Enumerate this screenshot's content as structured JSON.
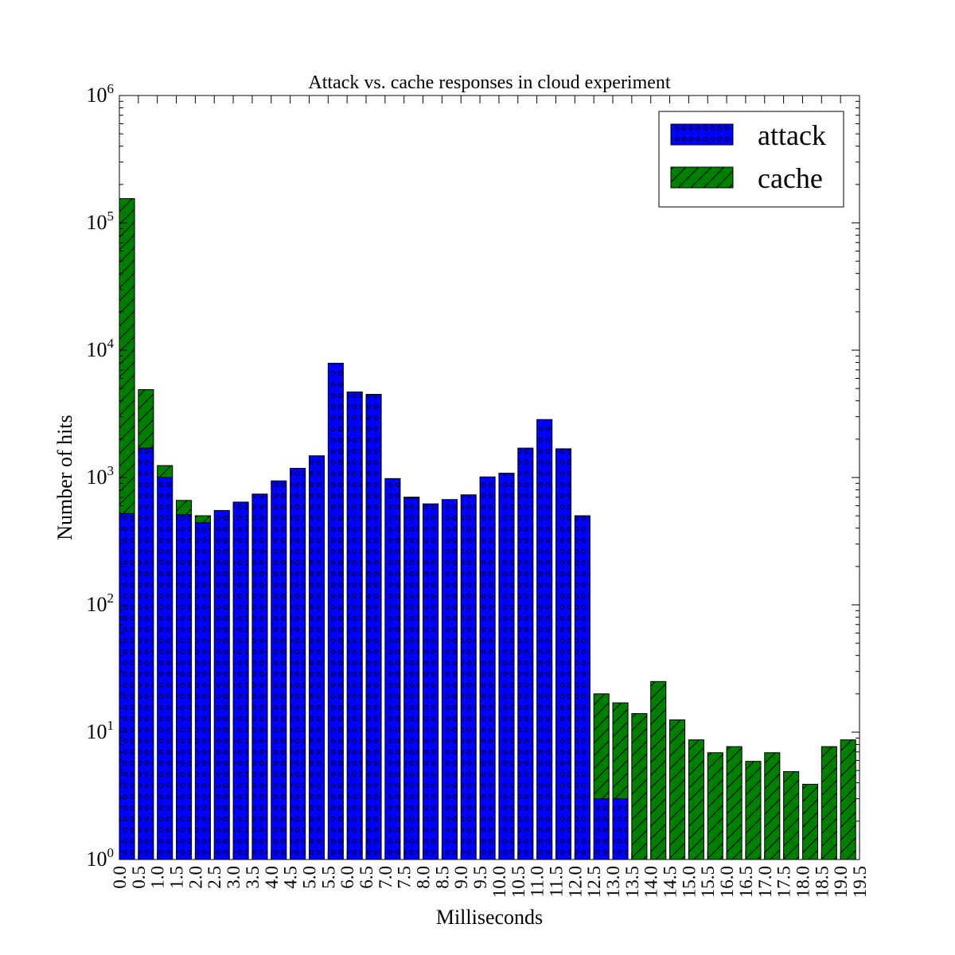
{
  "chart_data": {
    "type": "bar",
    "title": "Attack vs. cache responses in cloud experiment",
    "xlabel": "Milliseconds",
    "ylabel": "Number of hits",
    "yscale": "log",
    "ylim": [
      1,
      1000000
    ],
    "xlim": [
      0,
      19.5
    ],
    "bar_width": 0.4,
    "stacked": true,
    "legend_position": "top-right",
    "x": [
      0.0,
      0.5,
      1.0,
      1.5,
      2.0,
      2.5,
      3.0,
      3.5,
      4.0,
      4.5,
      5.0,
      5.5,
      6.0,
      6.5,
      7.0,
      7.5,
      8.0,
      8.5,
      9.0,
      9.5,
      10.0,
      10.5,
      11.0,
      11.5,
      12.0,
      12.5,
      13.0,
      13.5,
      14.0,
      14.5,
      15.0,
      15.5,
      16.0,
      16.5,
      17.0,
      17.5,
      18.0,
      18.5,
      19.0
    ],
    "x_tick_labels": [
      "0.0",
      "0.5",
      "1.0",
      "1.5",
      "2.0",
      "2.5",
      "3.0",
      "3.5",
      "4.0",
      "4.5",
      "5.0",
      "5.5",
      "6.0",
      "6.5",
      "7.0",
      "7.5",
      "8.0",
      "8.5",
      "9.0",
      "9.5",
      "10.0",
      "10.5",
      "11.0",
      "11.5",
      "12.0",
      "12.5",
      "13.0",
      "13.5",
      "14.0",
      "14.5",
      "15.0",
      "15.5",
      "16.0",
      "16.5",
      "17.0",
      "17.5",
      "18.0",
      "18.5",
      "19.0",
      "19.5"
    ],
    "y_tick_labels": [
      {
        "base": "10",
        "exp": "0"
      },
      {
        "base": "10",
        "exp": "1"
      },
      {
        "base": "10",
        "exp": "2"
      },
      {
        "base": "10",
        "exp": "3"
      },
      {
        "base": "10",
        "exp": "4"
      },
      {
        "base": "10",
        "exp": "5"
      },
      {
        "base": "10",
        "exp": "6"
      }
    ],
    "series": [
      {
        "name": "attack",
        "color": "#0000ff",
        "pattern": "dots",
        "values": [
          520,
          1700,
          1000,
          510,
          440,
          550,
          640,
          740,
          940,
          1180,
          1480,
          7900,
          4700,
          4500,
          980,
          690,
          620,
          670,
          730,
          1010,
          1080,
          1700,
          2850,
          1680,
          500,
          2,
          2,
          0,
          0,
          0,
          0,
          0,
          0,
          0,
          0,
          0,
          0,
          0,
          0
        ]
      },
      {
        "name": "cache",
        "color": "#007f00",
        "pattern": "hatch",
        "values": [
          154480,
          3200,
          240,
          150,
          60,
          0,
          0,
          0,
          0,
          0,
          0,
          0,
          0,
          0,
          0,
          10,
          0,
          0,
          0,
          0,
          0,
          0,
          0,
          0,
          0,
          17,
          14,
          13,
          24,
          11.5,
          7.7,
          5.9,
          6.7,
          4.9,
          5.9,
          3.9,
          2.9,
          6.7,
          7.7
        ]
      }
    ]
  }
}
